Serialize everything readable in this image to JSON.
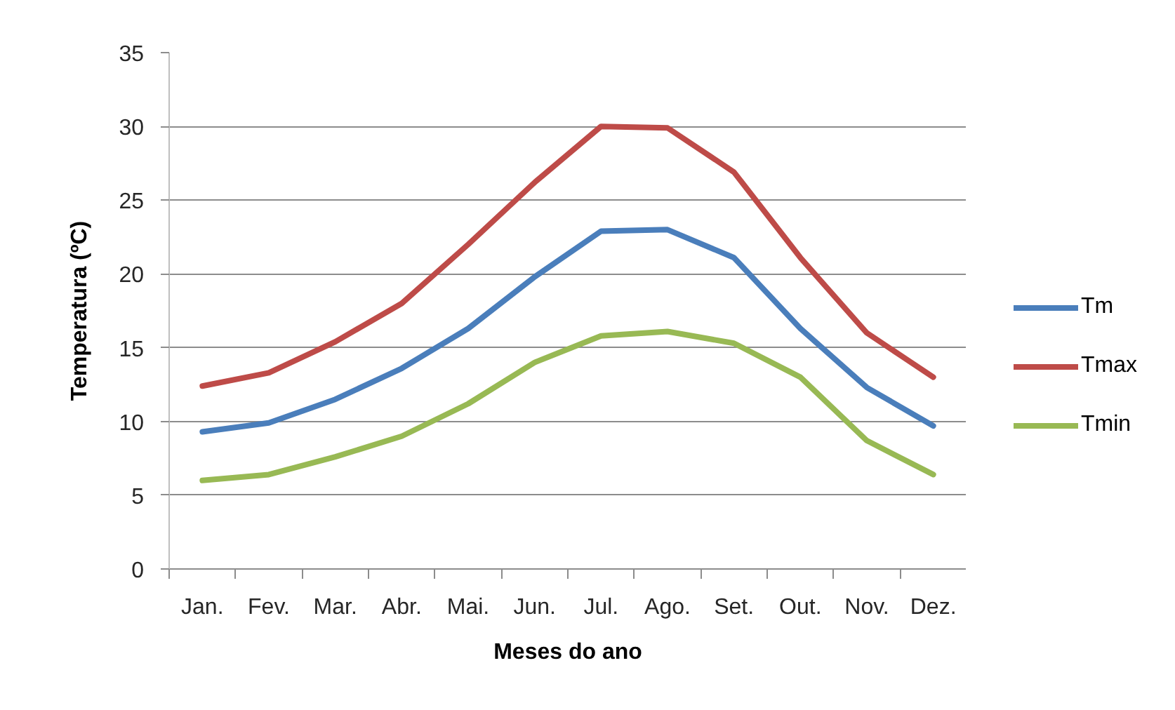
{
  "chart_data": {
    "type": "line",
    "xlabel": "Meses do ano",
    "ylabel": "Temperatura (ºC)",
    "categories": [
      "Jan.",
      "Fev.",
      "Mar.",
      "Abr.",
      "Mai.",
      "Jun.",
      "Jul.",
      "Ago.",
      "Set.",
      "Out.",
      "Nov.",
      "Dez."
    ],
    "series": [
      {
        "name": "Tm",
        "color": "#4a7ebb",
        "values": [
          9.3,
          9.9,
          11.5,
          13.6,
          16.3,
          19.8,
          22.9,
          23.0,
          21.1,
          16.3,
          12.3,
          9.7
        ]
      },
      {
        "name": "Tmax",
        "color": "#be4b48",
        "values": [
          12.4,
          13.3,
          15.4,
          18.0,
          22.0,
          26.2,
          30.0,
          29.9,
          26.9,
          21.1,
          16.0,
          13.0
        ]
      },
      {
        "name": "Tmin",
        "color": "#98b954",
        "values": [
          6.0,
          6.4,
          7.6,
          9.0,
          11.2,
          14.0,
          15.8,
          16.1,
          15.3,
          13.0,
          8.7,
          6.4
        ]
      }
    ],
    "ylim": [
      0,
      35
    ],
    "yticks": [
      0,
      5,
      10,
      15,
      20,
      25,
      30,
      35
    ],
    "grid": "y",
    "legend": "right"
  }
}
